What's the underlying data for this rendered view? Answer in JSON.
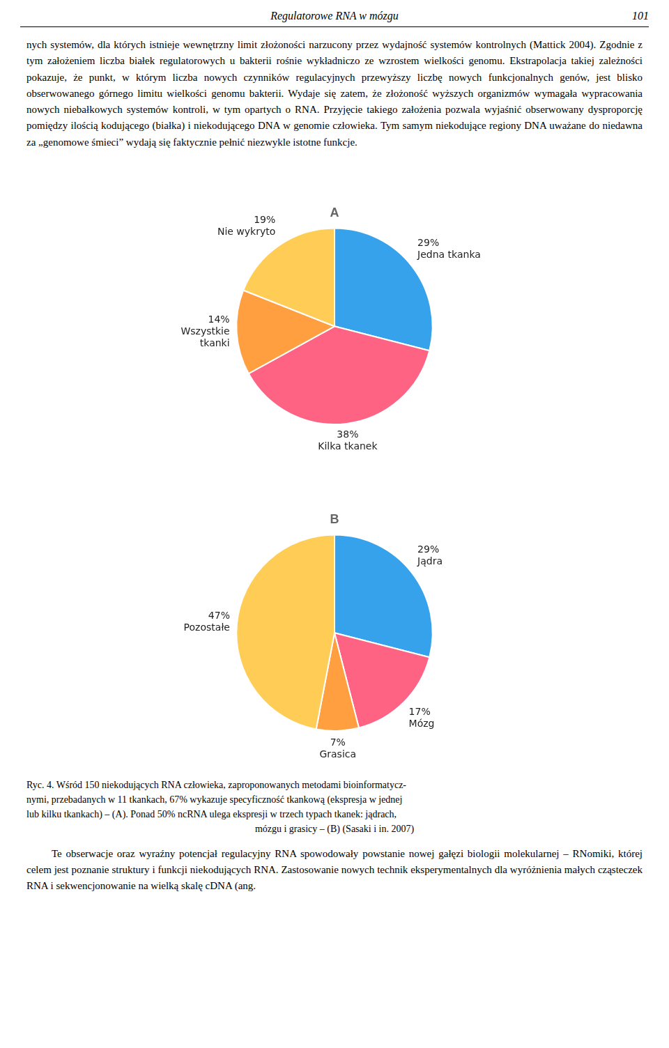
{
  "header_title": "Regulatorowe RNA w mózgu",
  "header_page": "101",
  "paragraph1": "nych systemów, dla których istnieje wewnętrzny limit złożoności narzucony przez wydajność systemów kontrolnych (Mattick 2004). Zgodnie z tym założeniem liczba białek regulatorowych u bakterii rośnie wykładniczo ze wzrostem wielkości genomu. Ekstrapolacja takiej zależności pokazuje, że punkt, w którym liczba nowych czynników regulacyjnych przewyższy liczbę nowych funkcjonalnych genów, jest blisko obserwowanego górnego limitu wielkości genomu bakterii. Wydaje się zatem, że złożoność wyższych organizmów wymagała wypracowania nowych niebałkowych systemów kontroli, w tym opartych o RNA. Przyjęcie takiego założenia pozwala wyjaśnić obserwowany dysproporcję pomiędzy ilością kodującego (białka) i niekodującego DNA w genomie człowieka. Tym samym niekodujące regiony DNA uważane do niedawna za „genomowe śmieci” wydają się faktycznie pełnić niezwykle istotne funkcje.",
  "chart_data": [
    {
      "type": "pie",
      "title": "A",
      "categories": [
        "Jedna tkanka",
        "Kilka tkanek",
        "Wszystkie\ntkanki",
        "Nie wykryto"
      ],
      "values": [
        29,
        38,
        14,
        19
      ],
      "value_labels": [
        "29%",
        "38%",
        "14%",
        "19%"
      ],
      "data_labels": true,
      "legend": false
    },
    {
      "type": "pie",
      "title": "B",
      "categories": [
        "Jądra",
        "Mózg",
        "Grasica",
        "Pozostałe"
      ],
      "values": [
        29,
        17,
        7,
        47
      ],
      "value_labels": [
        "29%",
        "17%",
        "7%",
        "47%"
      ],
      "data_labels": true,
      "legend": false
    }
  ],
  "caption_lines": [
    "Ryc. 4. Wśród 150 niekodujących RNA człowieka, zaproponowanych metodami bioinformatycz-",
    "nymi, przebadanych w 11 tkankach, 67% wykazuje specyficzność tkankową (ekspresja w jednej",
    "lub kilku tkankach) – (A). Ponad 50% ncRNA ulega ekspresji w trzech typach tkanek: jądrach,",
    "mózgu i grasicy – (B) (Sasaki i in. 2007)"
  ],
  "paragraph2": "Te obserwacje oraz wyraźny potencjał regulacyjny RNA spowodowały powstanie nowej gałęzi biologii molekularnej – RNomiki, której celem jest poznanie struktury i funkcji niekodujących RNA. Zastosowanie nowych technik eksperymentalnych dla wyróżnienia małych cząsteczek RNA i sekwencjonowanie na wielką skalę cDNA (ang."
}
